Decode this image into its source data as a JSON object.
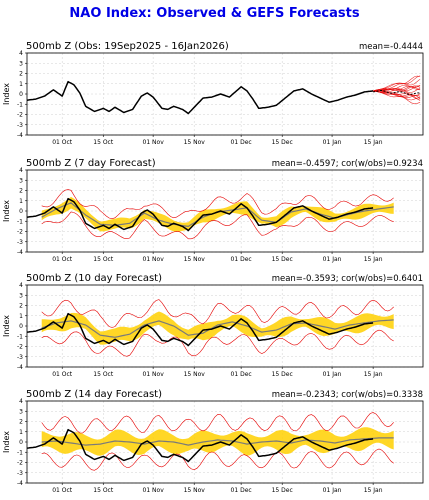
{
  "page": {
    "title": "NAO Index: Observed & GEFS Forecasts"
  },
  "chart_data": [
    {
      "type": "line",
      "title": "500mb Z (Obs: 19Sep2025 - 16Jan2026)",
      "stats": "mean=-0.4444",
      "ylabel": "Index",
      "ylim": [
        -4,
        4
      ],
      "yticks": [
        "4",
        "3",
        "2",
        "1",
        "0",
        "-1",
        "-2",
        "-3",
        "-4"
      ],
      "xticks": [
        "01 Oct",
        "15 Oct",
        "01 Nov",
        "15 Nov",
        "01 Dec",
        "15 Dec",
        "01 Jan",
        "15 Jan"
      ],
      "xtick_days": [
        12,
        26,
        43,
        57,
        73,
        87,
        104,
        118
      ],
      "xlim_days": [
        0,
        135
      ],
      "grid": true,
      "series": [
        {
          "kind": "observed",
          "color": "#000000",
          "days": [
            0,
            3,
            6,
            9,
            12,
            14,
            16,
            18,
            20,
            23,
            26,
            28,
            30,
            33,
            36,
            39,
            41,
            43,
            46,
            48,
            50,
            53,
            55,
            57,
            60,
            63,
            66,
            69,
            71,
            73,
            75,
            77,
            79,
            82,
            85,
            88,
            91,
            94,
            97,
            100,
            103,
            106,
            109,
            112,
            115,
            118
          ],
          "values": [
            -0.6,
            -0.5,
            -0.2,
            0.4,
            -0.2,
            1.2,
            0.9,
            0.1,
            -1.2,
            -1.7,
            -1.4,
            -1.7,
            -1.3,
            -1.8,
            -1.5,
            -0.2,
            0.1,
            -0.3,
            -1.4,
            -1.5,
            -1.2,
            -1.5,
            -1.9,
            -1.3,
            -0.4,
            -0.3,
            0.0,
            -0.3,
            0.2,
            0.7,
            0.3,
            -0.5,
            -1.4,
            -1.3,
            -1.1,
            -0.4,
            0.3,
            0.5,
            0.0,
            -0.4,
            -0.8,
            -0.6,
            -0.3,
            -0.1,
            0.2,
            0.3
          ]
        },
        {
          "kind": "forecast-spread",
          "color": "#e60000",
          "start_day": 118,
          "end_day": 134,
          "start_value": 0.3,
          "spread_max": 1.2
        }
      ]
    },
    {
      "type": "line",
      "title": "500mb Z (7 day Forecast)",
      "stats": "mean=-0.4597; cor(w/obs)=0.9234",
      "ylabel": "Index",
      "ylim": [
        -4,
        4
      ],
      "yticks": [
        "4",
        "3",
        "2",
        "1",
        "0",
        "-1",
        "-2",
        "-3",
        "-4"
      ],
      "xticks": [
        "01 Oct",
        "15 Oct",
        "01 Nov",
        "15 Nov",
        "01 Dec",
        "15 Dec",
        "01 Jan",
        "15 Jan"
      ],
      "xtick_days": [
        12,
        26,
        43,
        57,
        73,
        87,
        104,
        118
      ],
      "xlim_days": [
        0,
        135
      ],
      "grid": true,
      "band_width": 0.6,
      "outer_width": 1.4,
      "series": [
        {
          "kind": "observed",
          "color": "#000000",
          "days": [
            0,
            3,
            6,
            9,
            12,
            14,
            16,
            18,
            20,
            23,
            26,
            28,
            30,
            33,
            36,
            39,
            41,
            43,
            46,
            48,
            50,
            53,
            55,
            57,
            60,
            63,
            66,
            69,
            71,
            73,
            75,
            77,
            79,
            82,
            85,
            88,
            91,
            94,
            97,
            100,
            103,
            106,
            109,
            112,
            115,
            118
          ],
          "values": [
            -0.6,
            -0.5,
            -0.2,
            0.4,
            -0.2,
            1.2,
            0.9,
            0.1,
            -1.2,
            -1.7,
            -1.4,
            -1.7,
            -1.3,
            -1.8,
            -1.5,
            -0.2,
            0.1,
            -0.3,
            -1.4,
            -1.5,
            -1.2,
            -1.5,
            -1.9,
            -1.3,
            -0.4,
            -0.3,
            0.0,
            -0.3,
            0.2,
            0.7,
            0.3,
            -0.5,
            -1.4,
            -1.3,
            -1.1,
            -0.4,
            0.3,
            0.5,
            0.0,
            -0.4,
            -0.8,
            -0.6,
            -0.3,
            -0.1,
            0.2,
            0.3
          ]
        },
        {
          "kind": "ensemble-mean",
          "color": "#7a7a7a",
          "days": [
            5,
            10,
            15,
            20,
            25,
            30,
            35,
            40,
            45,
            50,
            55,
            60,
            65,
            70,
            75,
            80,
            85,
            90,
            95,
            100,
            105,
            110,
            115,
            120,
            125
          ],
          "values": [
            -0.6,
            0.2,
            0.8,
            -0.4,
            -1.3,
            -1.4,
            -1.2,
            -0.2,
            -0.9,
            -1.3,
            -1.5,
            -0.6,
            -0.1,
            0.1,
            0.3,
            -0.9,
            -1.1,
            -0.1,
            0.2,
            -0.3,
            -0.7,
            -0.3,
            0.0,
            0.2,
            0.4
          ]
        }
      ]
    },
    {
      "type": "line",
      "title": "500mb Z (10 day Forecast)",
      "stats": "mean=-0.3593; cor(w/obs)=0.6401",
      "ylabel": "Index",
      "ylim": [
        -4,
        4
      ],
      "yticks": [
        "4",
        "3",
        "2",
        "1",
        "0",
        "-1",
        "-2",
        "-3",
        "-4"
      ],
      "xticks": [
        "01 Oct",
        "15 Oct",
        "01 Nov",
        "15 Nov",
        "01 Dec",
        "15 Dec",
        "01 Jan",
        "15 Jan"
      ],
      "xtick_days": [
        12,
        26,
        43,
        57,
        73,
        87,
        104,
        118
      ],
      "xlim_days": [
        0,
        135
      ],
      "grid": true,
      "band_width": 0.8,
      "outer_width": 2.0,
      "series": [
        {
          "kind": "observed",
          "color": "#000000",
          "days": [
            0,
            3,
            6,
            9,
            12,
            14,
            16,
            18,
            20,
            23,
            26,
            28,
            30,
            33,
            36,
            39,
            41,
            43,
            46,
            48,
            50,
            53,
            55,
            57,
            60,
            63,
            66,
            69,
            71,
            73,
            75,
            77,
            79,
            82,
            85,
            88,
            91,
            94,
            97,
            100,
            103,
            106,
            109,
            112,
            115,
            118
          ],
          "values": [
            -0.6,
            -0.5,
            -0.2,
            0.4,
            -0.2,
            1.2,
            0.9,
            0.1,
            -1.2,
            -1.7,
            -1.4,
            -1.7,
            -1.3,
            -1.8,
            -1.5,
            -0.2,
            0.1,
            -0.3,
            -1.4,
            -1.5,
            -1.2,
            -1.5,
            -1.9,
            -1.3,
            -0.4,
            -0.3,
            0.0,
            -0.3,
            0.2,
            0.7,
            0.3,
            -0.5,
            -1.4,
            -1.3,
            -1.1,
            -0.4,
            0.3,
            0.5,
            0.0,
            -0.4,
            -0.8,
            -0.6,
            -0.3,
            -0.1,
            0.2,
            0.3
          ]
        },
        {
          "kind": "ensemble-mean",
          "color": "#7a7a7a",
          "days": [
            5,
            10,
            15,
            20,
            25,
            30,
            35,
            40,
            45,
            50,
            55,
            60,
            65,
            70,
            75,
            80,
            85,
            90,
            95,
            100,
            105,
            110,
            115,
            120,
            125
          ],
          "values": [
            -0.2,
            0.3,
            0.5,
            0.1,
            -0.9,
            -1.1,
            -0.8,
            0.1,
            0.5,
            0.0,
            -0.9,
            -0.7,
            0.1,
            0.4,
            0.0,
            -0.6,
            -0.4,
            0.2,
            0.3,
            0.0,
            -0.3,
            0.1,
            0.3,
            0.5,
            0.6
          ]
        }
      ]
    },
    {
      "type": "line",
      "title": "500mb Z (14 day Forecast)",
      "stats": "mean=-0.2343; cor(w/obs)=0.3338",
      "ylabel": "Index",
      "ylim": [
        -4,
        4
      ],
      "yticks": [
        "4",
        "3",
        "2",
        "1",
        "0",
        "-1",
        "-2",
        "-3",
        "-4"
      ],
      "xticks": [
        "01 Oct",
        "15 Oct",
        "01 Nov",
        "15 Nov",
        "01 Dec",
        "15 Dec",
        "01 Jan",
        "15 Jan"
      ],
      "xtick_days": [
        12,
        26,
        43,
        57,
        73,
        87,
        104,
        118
      ],
      "xlim_days": [
        0,
        135
      ],
      "grid": true,
      "band_width": 1.0,
      "outer_width": 2.4,
      "series": [
        {
          "kind": "observed",
          "color": "#000000",
          "days": [
            0,
            3,
            6,
            9,
            12,
            14,
            16,
            18,
            20,
            23,
            26,
            28,
            30,
            33,
            36,
            39,
            41,
            43,
            46,
            48,
            50,
            53,
            55,
            57,
            60,
            63,
            66,
            69,
            71,
            73,
            75,
            77,
            79,
            82,
            85,
            88,
            91,
            94,
            97,
            100,
            103,
            106,
            109,
            112,
            115,
            118
          ],
          "values": [
            -0.6,
            -0.5,
            -0.2,
            0.4,
            -0.2,
            1.2,
            0.9,
            0.1,
            -1.2,
            -1.7,
            -1.4,
            -1.7,
            -1.3,
            -1.8,
            -1.5,
            -0.2,
            0.1,
            -0.3,
            -1.4,
            -1.5,
            -1.2,
            -1.5,
            -1.9,
            -1.3,
            -0.4,
            -0.3,
            0.0,
            -0.3,
            0.2,
            0.7,
            0.3,
            -0.5,
            -1.4,
            -1.3,
            -1.1,
            -0.4,
            0.3,
            0.5,
            0.0,
            -0.4,
            -0.8,
            -0.6,
            -0.3,
            -0.1,
            0.2,
            0.3
          ]
        },
        {
          "kind": "ensemble-mean",
          "color": "#7a7a7a",
          "days": [
            5,
            10,
            15,
            20,
            25,
            30,
            35,
            40,
            45,
            50,
            55,
            60,
            65,
            70,
            75,
            80,
            85,
            90,
            95,
            100,
            105,
            110,
            115,
            120,
            125
          ],
          "values": [
            0.0,
            0.1,
            -0.1,
            -0.3,
            -0.2,
            0.1,
            0.0,
            -0.2,
            0.1,
            0.0,
            -0.3,
            0.0,
            0.2,
            0.1,
            -0.2,
            0.0,
            0.1,
            -0.1,
            0.2,
            0.1,
            -0.1,
            0.2,
            0.3,
            0.4,
            0.4
          ]
        }
      ]
    }
  ]
}
